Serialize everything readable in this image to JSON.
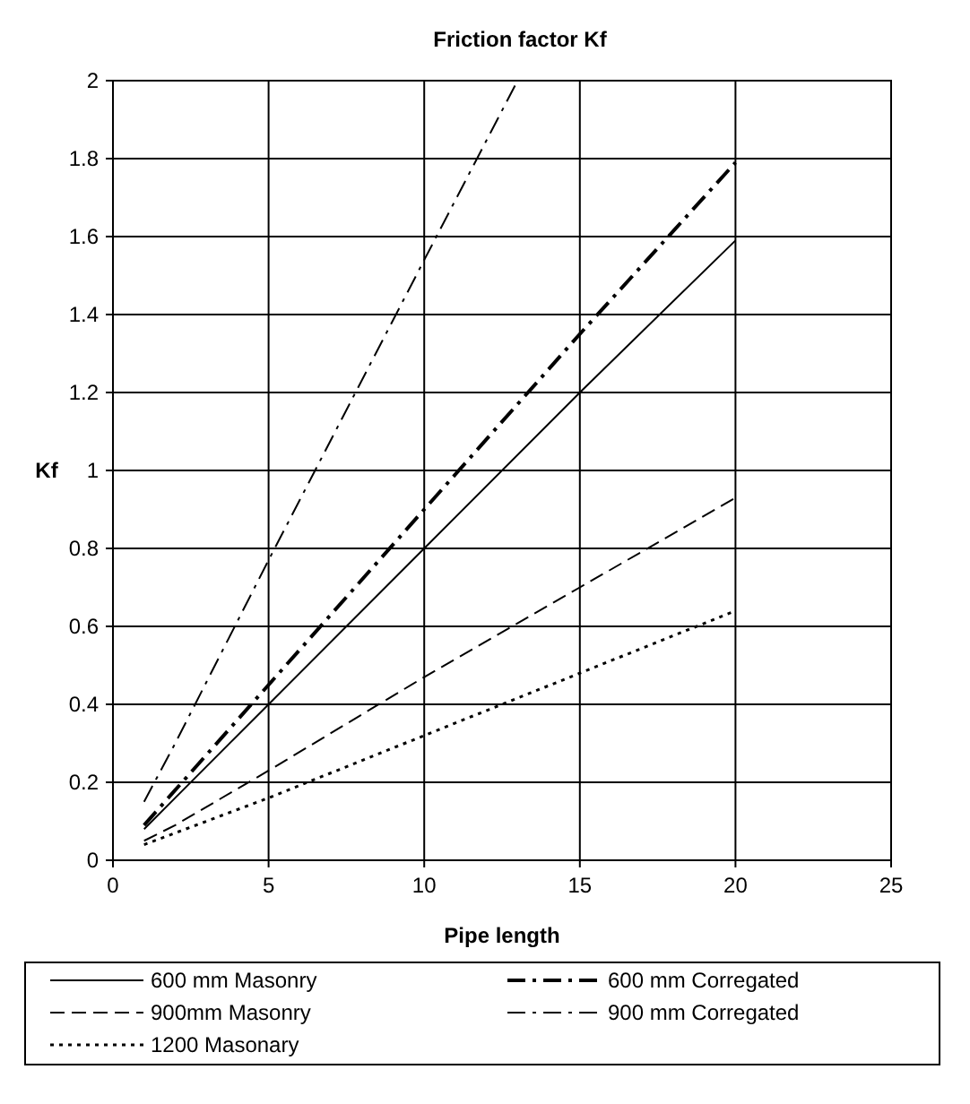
{
  "chart_data": {
    "type": "line",
    "title": "Friction factor Kf",
    "xlabel": "Pipe length",
    "ylabel": "Kf",
    "x": [
      1,
      2,
      5,
      10,
      15,
      20
    ],
    "series": [
      {
        "name": "600 mm Masonry",
        "color": "#000000",
        "line_style": "solid",
        "values": [
          0.08,
          0.16,
          0.4,
          0.8,
          1.2,
          1.59
        ]
      },
      {
        "name": "600 mm Corregated",
        "color": "#000000",
        "line_style": "dashdot",
        "values": [
          0.09,
          0.18,
          0.45,
          0.9,
          1.35,
          1.79
        ]
      },
      {
        "name": "900mm Masonry",
        "color": "#000000",
        "line_style": "dashed",
        "values": [
          0.05,
          0.09,
          0.23,
          0.47,
          0.7,
          0.93
        ]
      },
      {
        "name": "900 mm Corregated",
        "color": "#000000",
        "line_style": "dashdot",
        "x": [
          1,
          2,
          5,
          10,
          13
        ],
        "values": [
          0.15,
          0.3,
          0.77,
          1.54,
          2.0
        ]
      },
      {
        "name": "1200 Masonary",
        "color": "#000000",
        "line_style": "dotted",
        "values": [
          0.04,
          0.07,
          0.16,
          0.32,
          0.48,
          0.64
        ]
      }
    ],
    "xlim": [
      0,
      25
    ],
    "xticks": [
      0,
      5,
      10,
      15,
      20,
      25
    ],
    "ylim": [
      0,
      2
    ],
    "yticks": [
      0,
      0.2,
      0.4,
      0.6,
      0.8,
      1,
      1.2,
      1.4,
      1.6,
      1.8,
      2
    ],
    "grid": true,
    "legend": "bottom"
  }
}
